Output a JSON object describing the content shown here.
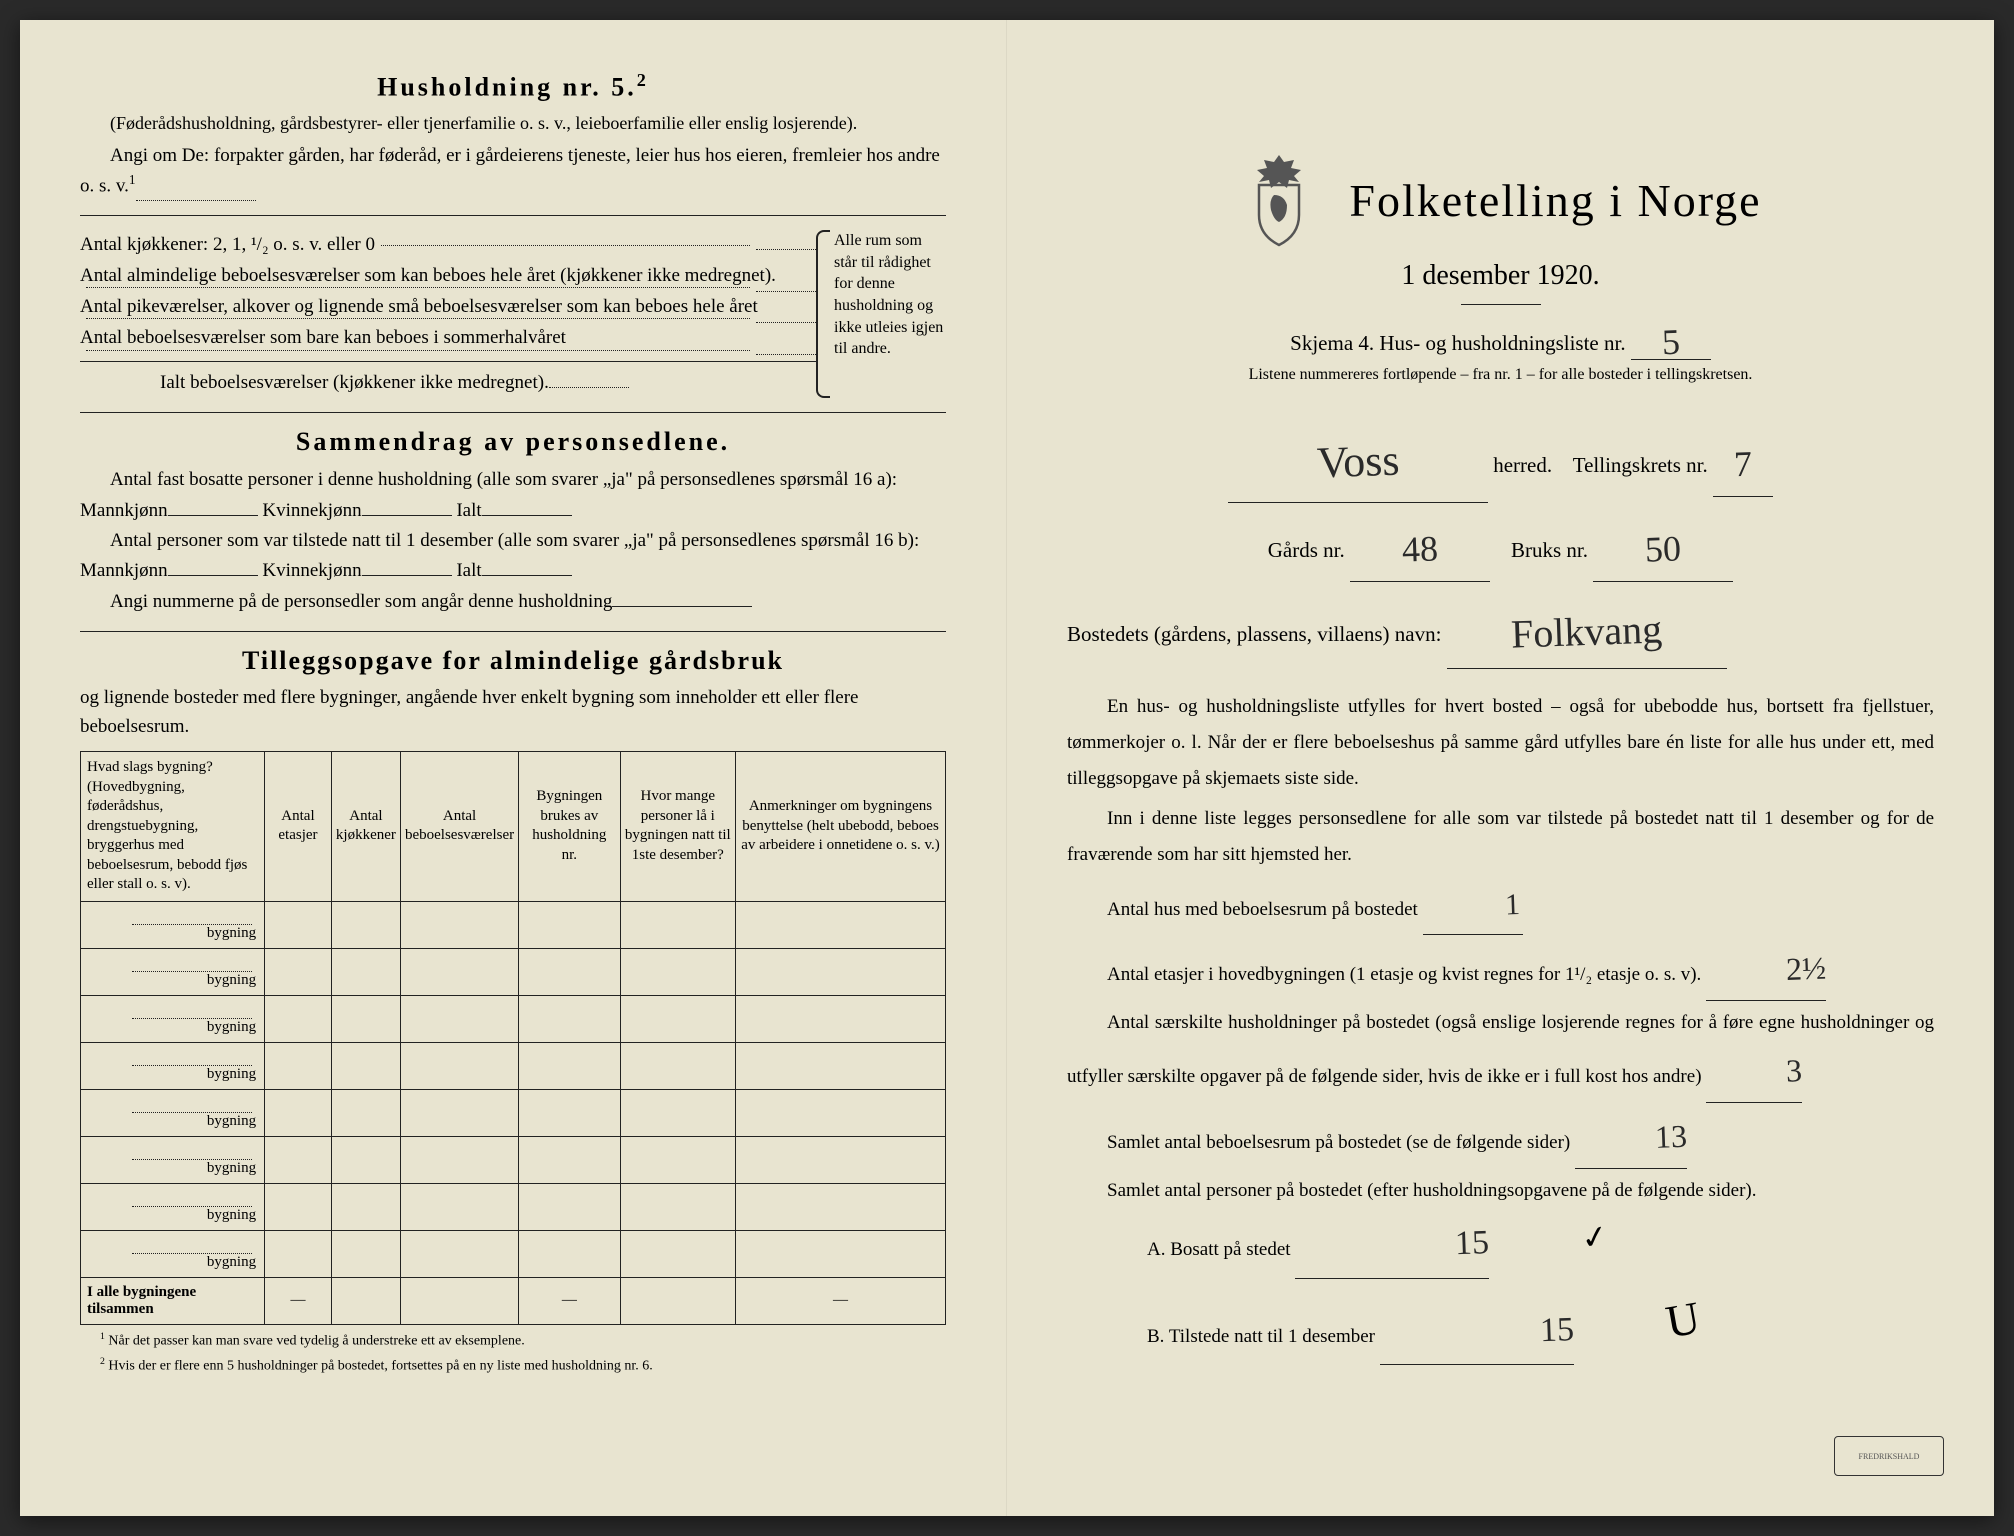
{
  "left": {
    "household_title": "Husholdning nr. 5.",
    "household_sup": "2",
    "household_note": "(Føderådshusholdning, gårdsbestyrer- eller tjenerfamilie o. s. v., leieboerfamilie eller enslig losjerende).",
    "angi_text": "Angi om De: forpakter gården, har føderåd, er i gårdeierens tjeneste, leier hus hos eieren, fremleier hos andre o. s. v.",
    "angi_sup": "1",
    "kitchen_label": "Antal kjøkkener: 2, 1, ¹/₂ o. s. v. eller 0",
    "room_rows": [
      "Antal almindelige beboelsesværelser som kan beboes hele året (kjøkkener ikke medregnet).",
      "Antal pikeværelser, alkover og lignende små beboelsesværelser som kan beboes hele året",
      "Antal beboelsesværelser som bare kan beboes i sommerhalvåret"
    ],
    "ialt_label": "Ialt beboelsesværelser (kjøkkener ikke medregnet).",
    "brace_text": "Alle rum som står til rådighet for denne husholdning og ikke utleies igjen til andre.",
    "summary_title": "Sammendrag av personsedlene.",
    "summary_l1": "Antal fast bosatte personer i denne husholdning (alle som svarer „ja\" på personsedlenes spørsmål 16 a): Mannkjønn",
    "summary_kv": "Kvinnekjønn",
    "summary_ialt": "Ialt",
    "summary_l2": "Antal personer som var tilstede natt til 1 desember (alle som svarer „ja\" på personsedlenes spørsmål 16 b): Mannkjønn",
    "summary_l3": "Angi nummerne på de personsedler som angår denne husholdning",
    "tillegg_title": "Tilleggsopgave for almindelige gårdsbruk",
    "tillegg_note": "og lignende bosteder med flere bygninger, angående hver enkelt bygning som inneholder ett eller flere beboelsesrum.",
    "table": {
      "headers": [
        "Hvad slags bygning?\n(Hovedbygning, føderådshus, drengstuebygning, bryggerhus med beboelsesrum, bebodd fjøs eller stall o. s. v).",
        "Antal\netasjer",
        "Antal\nkjøkkener",
        "Antal\nbeboelsesværelser",
        "Bygningen\nbrukes av\nhusholdning nr.",
        "Hvor mange\npersoner lå\ni bygningen\nnatt til 1ste\ndesember?",
        "Anmerkninger om bygningens benyttelse (helt ubebodd, beboes av arbeidere i onnetidene o. s. v.)"
      ],
      "row_label": "bygning",
      "row_count": 8,
      "total_label": "I alle bygningene tilsammen",
      "dash": "—"
    },
    "footnote1": "Når det passer kan man svare ved tydelig å understreke ett av eksemplene.",
    "footnote2": "Hvis der er flere enn 5 husholdninger på bostedet, fortsettes på en ny liste med husholdning nr. 6.",
    "foot_sup1": "1",
    "foot_sup2": "2"
  },
  "right": {
    "main_title": "Folketelling i Norge",
    "date": "1 desember 1920.",
    "schema_text": "Skjema 4.  Hus- og husholdningsliste nr.",
    "schema_nr": "5",
    "list_note": "Listene nummereres fortløpende – fra nr. 1 – for alle bosteder i tellingskretsen.",
    "herred_value": "Voss",
    "herred_label": "herred.",
    "krets_label": "Tellingskrets nr.",
    "krets_value": "7",
    "gards_label": "Gårds nr.",
    "gards_value": "48",
    "bruks_label": "Bruks nr.",
    "bruks_value": "50",
    "bosted_label": "Bostedets (gårdens, plassens, villaens) navn:",
    "bosted_value": "Folkvang",
    "para1": "En hus- og husholdningsliste utfylles for hvert bosted – også for ubebodde hus, bortsett fra fjellstuer, tømmerkojer o. l.  Når der er flere beboelseshus på samme gård utfylles bare én liste for alle hus under ett, med tilleggsopgave på skjemaets siste side.",
    "para2": "Inn i denne liste legges personsedlene for alle som var tilstede på bostedet natt til 1 desember og for de fraværende som har sitt hjemsted her.",
    "q1_label": "Antal hus med beboelsesrum på bostedet",
    "q1_value": "1",
    "q2_label_a": "Antal etasjer i hovedbygningen (1 etasje og kvist regnes for 1¹/₂ etasje o. s. v).",
    "q2_value": "2½",
    "q3_label": "Antal særskilte husholdninger på bostedet (også enslige losjerende regnes for å føre egne husholdninger og utfyller særskilte opgaver på de følgende sider, hvis de ikke er i full kost hos andre)",
    "q3_value": "3",
    "q4_label": "Samlet antal beboelsesrum på bostedet (se de følgende sider)",
    "q4_value": "13",
    "q5_label": "Samlet antal personer på bostedet (efter husholdningsopgavene på de følgende sider).",
    "qA_label": "A.  Bosatt på stedet",
    "qA_value": "15",
    "qA_check": "✓",
    "qB_label": "B.  Tilstede natt til 1 desember",
    "qB_value": "15",
    "qB_check": "U",
    "stamp_text": "FREDRIKSHALD"
  },
  "colors": {
    "paper": "#e8e4d0",
    "ink": "#222222",
    "handwriting": "#2a2a2a"
  }
}
